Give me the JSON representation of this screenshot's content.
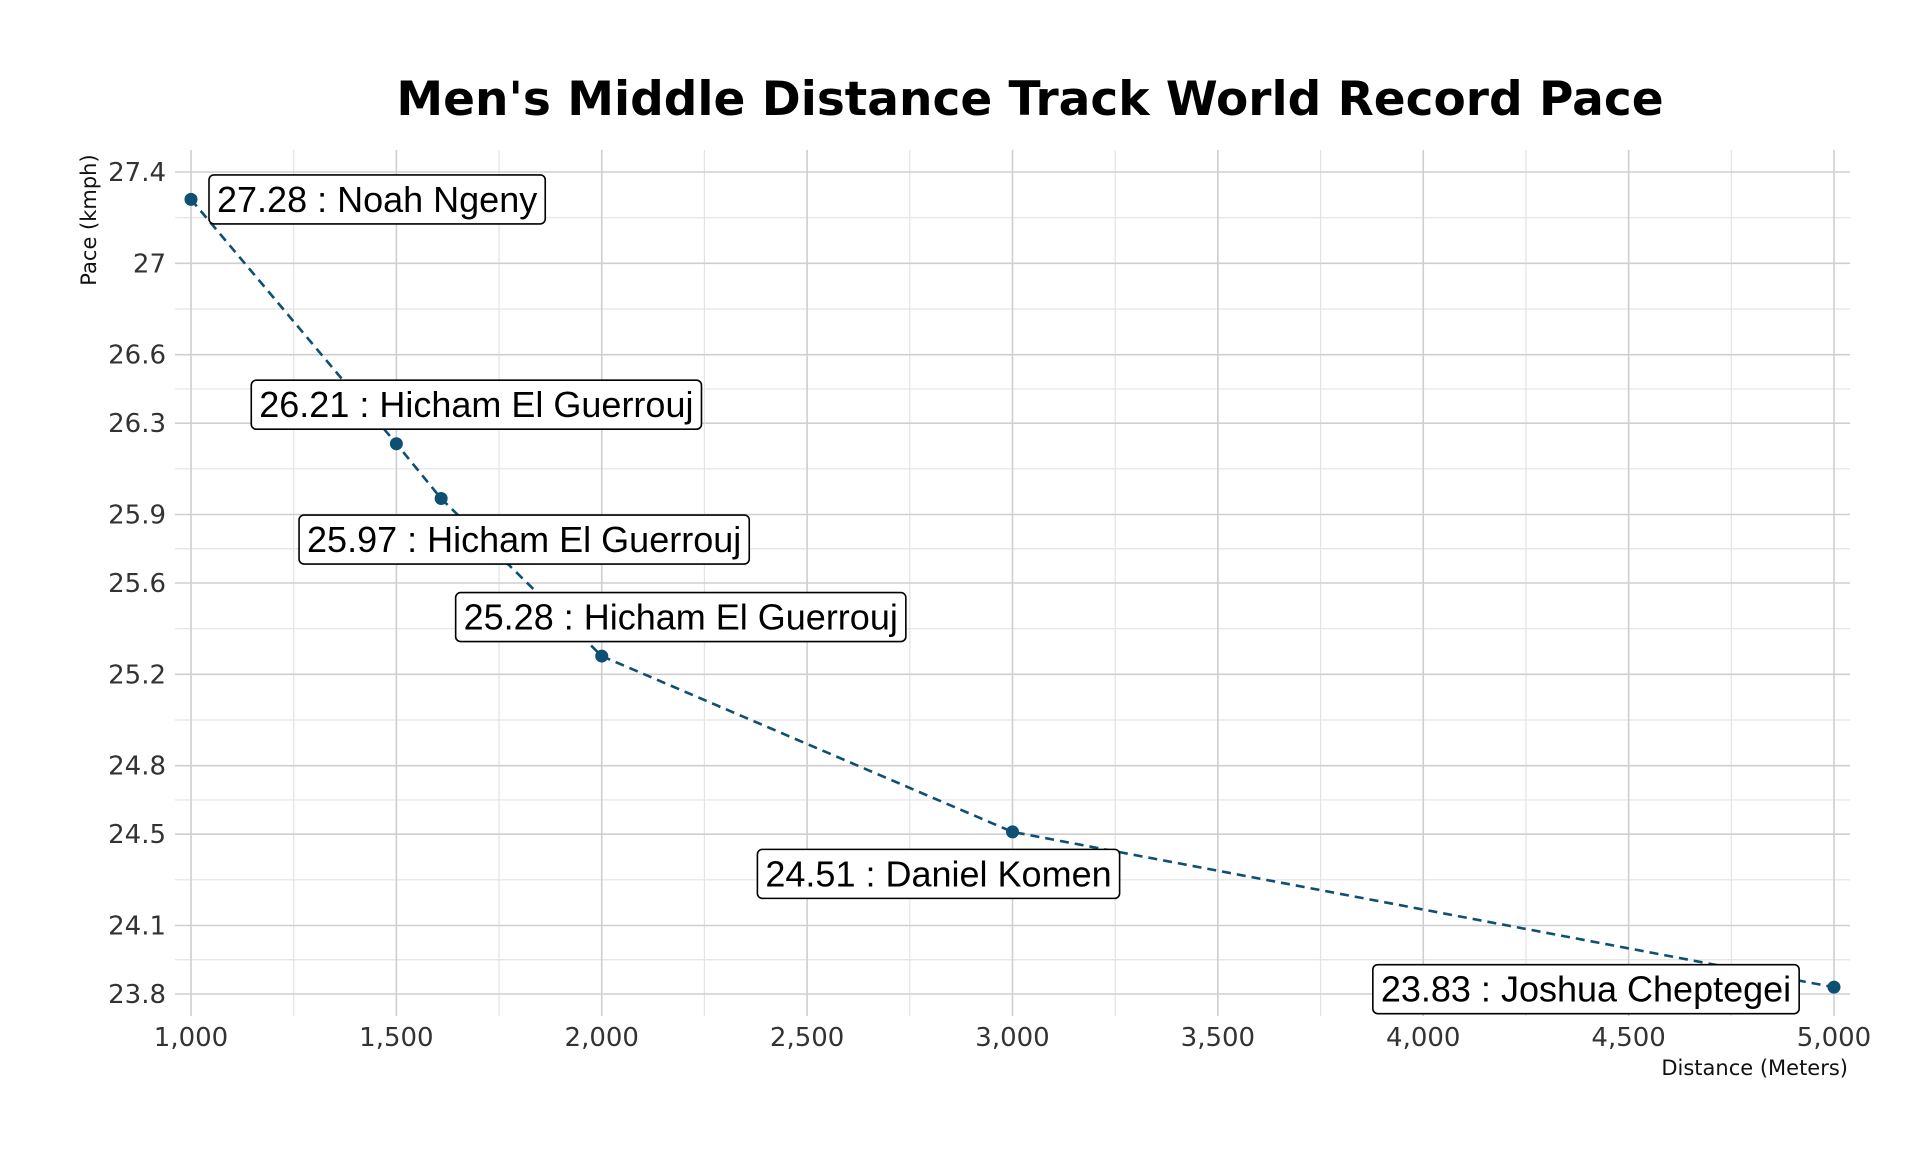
{
  "chart_data": {
    "type": "line",
    "title": "Men's Middle Distance Track World Record Pace",
    "xlabel": "Distance (Meters)",
    "ylabel": "Pace (kmph)",
    "xlim": [
      1000,
      5000
    ],
    "ylim": [
      23.8,
      27.4
    ],
    "x_ticks": [
      1000,
      1500,
      2000,
      2500,
      3000,
      3500,
      4000,
      4500,
      5000
    ],
    "x_tick_labels": [
      "1,000",
      "1,500",
      "2,000",
      "2,500",
      "3,000",
      "3,500",
      "4,000",
      "4,500",
      "5,000"
    ],
    "y_ticks": [
      23.8,
      24.1,
      24.5,
      24.8,
      25.2,
      25.6,
      25.9,
      26.3,
      26.6,
      27,
      27.4
    ],
    "y_tick_labels": [
      "23.8",
      "24.1",
      "24.5",
      "24.8",
      "25.2",
      "25.6",
      "25.9",
      "26.3",
      "26.6",
      "27",
      "27.4"
    ],
    "grid": true,
    "legend": false,
    "line_style": "dashed",
    "color": "#0d5073",
    "points": [
      {
        "x": 1000,
        "y": 27.28,
        "label": "27.28 : Noah Ngeny"
      },
      {
        "x": 1500,
        "y": 26.21,
        "label": "26.21 : Hicham El Guerrouj"
      },
      {
        "x": 1609,
        "y": 25.97,
        "label": "25.97 : Hicham El Guerrouj"
      },
      {
        "x": 2000,
        "y": 25.28,
        "label": "25.28 : Hicham El Guerrouj"
      },
      {
        "x": 3000,
        "y": 24.51,
        "label": "24.51 : Daniel Komen"
      },
      {
        "x": 5000,
        "y": 23.83,
        "label": "23.83 : Joshua Cheptegei"
      }
    ]
  }
}
